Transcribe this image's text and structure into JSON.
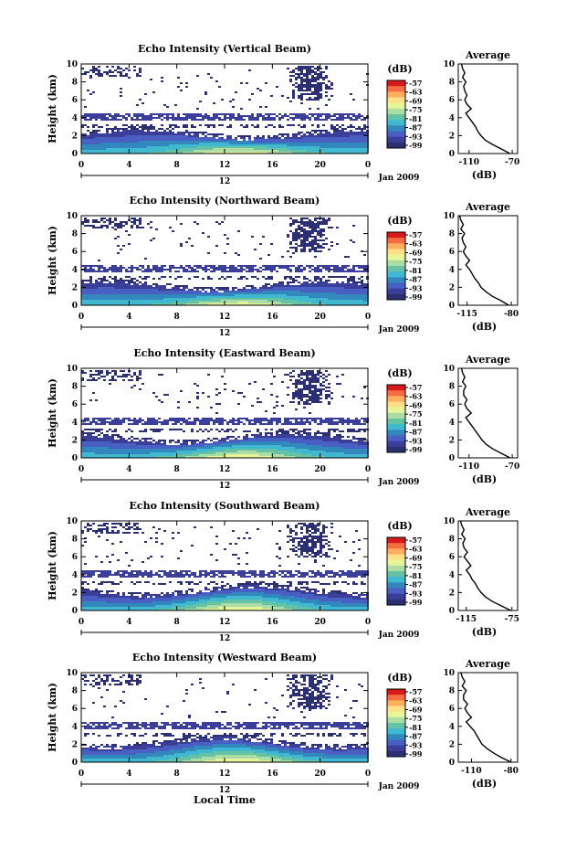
{
  "figure": {
    "xlabel": "Local Time",
    "date_label": "Jan 2009",
    "day_marker": "12"
  },
  "colorbar": {
    "title": "(dB)",
    "ticks": [
      "-57",
      "-63",
      "-69",
      "-75",
      "-81",
      "-87",
      "-93",
      "-99"
    ],
    "colors": [
      "#d7191c",
      "#f46d43",
      "#fdae61",
      "#fee08b",
      "#e6f598",
      "#abdda4",
      "#66c2a5",
      "#3fb8d0",
      "#3288bd",
      "#4a5fc2",
      "#3b3f9a",
      "#2d2f73"
    ]
  },
  "chart_data": [
    {
      "type": "heatmap",
      "title": "Echo Intensity (Vertical Beam)",
      "ylabel": "Height (km)",
      "x_ticks": [
        "0",
        "4",
        "8",
        "12",
        "16",
        "20",
        "0"
      ],
      "y_ticks": [
        "0",
        "2",
        "4",
        "6",
        "8",
        "10"
      ],
      "xlim": [
        0,
        24
      ],
      "ylim": [
        0,
        10
      ],
      "profile": {
        "title": "Average",
        "xlabel": "(dB)",
        "x_ticks": [
          "-110",
          "-70"
        ],
        "xlim": [
          -120,
          -65
        ],
        "heights": [
          0,
          0.5,
          1,
          1.5,
          2,
          2.5,
          3,
          3.5,
          4,
          4.5,
          5,
          5.5,
          6,
          6.5,
          7,
          7.5,
          8,
          8.5,
          9,
          9.5,
          10
        ],
        "values": [
          -72,
          -80,
          -88,
          -95,
          -99,
          -102,
          -104,
          -107,
          -110,
          -113,
          -108,
          -112,
          -114,
          -112,
          -114,
          -115,
          -113,
          -116,
          -114,
          -116,
          -117
        ]
      }
    },
    {
      "type": "heatmap",
      "title": "Echo Intensity (Northward Beam)",
      "ylabel": "Height (km)",
      "x_ticks": [
        "0",
        "4",
        "8",
        "12",
        "16",
        "20",
        "0"
      ],
      "y_ticks": [
        "0",
        "2",
        "4",
        "6",
        "8",
        "10"
      ],
      "xlim": [
        0,
        24
      ],
      "ylim": [
        0,
        10
      ],
      "profile": {
        "title": "Average",
        "xlabel": "(dB)",
        "x_ticks": [
          "-115",
          "-80"
        ],
        "xlim": [
          -122,
          -75
        ],
        "heights": [
          0,
          0.5,
          1,
          1.5,
          2,
          2.5,
          3,
          3.5,
          4,
          4.5,
          5,
          5.5,
          6,
          6.5,
          7,
          7.5,
          8,
          8.5,
          9,
          9.5,
          10
        ],
        "values": [
          -82,
          -88,
          -95,
          -100,
          -104,
          -106,
          -109,
          -111,
          -113,
          -116,
          -113,
          -116,
          -118,
          -116,
          -118,
          -119,
          -117,
          -120,
          -118,
          -120,
          -121
        ]
      }
    },
    {
      "type": "heatmap",
      "title": "Echo Intensity (Eastward Beam)",
      "ylabel": "Height (km)",
      "x_ticks": [
        "0",
        "4",
        "8",
        "12",
        "16",
        "20",
        "0"
      ],
      "y_ticks": [
        "0",
        "2",
        "4",
        "6",
        "8",
        "10"
      ],
      "xlim": [
        0,
        24
      ],
      "ylim": [
        0,
        10
      ],
      "profile": {
        "title": "Average",
        "xlabel": "(dB)",
        "x_ticks": [
          "-110",
          "-70"
        ],
        "xlim": [
          -120,
          -65
        ],
        "heights": [
          0,
          0.5,
          1,
          1.5,
          2,
          2.5,
          3,
          3.5,
          4,
          4.5,
          5,
          5.5,
          6,
          6.5,
          7,
          7.5,
          8,
          8.5,
          9,
          9.5,
          10
        ],
        "values": [
          -72,
          -80,
          -88,
          -94,
          -98,
          -101,
          -104,
          -107,
          -110,
          -113,
          -108,
          -112,
          -114,
          -112,
          -115,
          -115,
          -113,
          -116,
          -114,
          -116,
          -117
        ]
      }
    },
    {
      "type": "heatmap",
      "title": "Echo Intensity (Southward Beam)",
      "ylabel": "Height (km)",
      "x_ticks": [
        "0",
        "4",
        "8",
        "12",
        "16",
        "20",
        "0"
      ],
      "y_ticks": [
        "0",
        "2",
        "4",
        "6",
        "8",
        "10"
      ],
      "xlim": [
        0,
        24
      ],
      "ylim": [
        0,
        10
      ],
      "profile": {
        "title": "Average",
        "xlabel": "(dB)",
        "x_ticks": [
          "-115",
          "-75"
        ],
        "xlim": [
          -122,
          -70
        ],
        "heights": [
          0,
          0.5,
          1,
          1.5,
          2,
          2.5,
          3,
          3.5,
          4,
          4.5,
          5,
          5.5,
          6,
          6.5,
          7,
          7.5,
          8,
          8.5,
          9,
          9.5,
          10
        ],
        "values": [
          -76,
          -84,
          -92,
          -98,
          -102,
          -105,
          -107,
          -110,
          -112,
          -115,
          -111,
          -114,
          -117,
          -114,
          -117,
          -118,
          -116,
          -119,
          -117,
          -119,
          -120
        ]
      }
    },
    {
      "type": "heatmap",
      "title": "Echo Intensity (Westward Beam)",
      "ylabel": "Height (km)",
      "x_ticks": [
        "0",
        "4",
        "8",
        "12",
        "16",
        "20",
        "0"
      ],
      "y_ticks": [
        "0",
        "2",
        "4",
        "6",
        "8",
        "10"
      ],
      "xlim": [
        0,
        24
      ],
      "ylim": [
        0,
        10
      ],
      "profile": {
        "title": "Average",
        "xlabel": "(dB)",
        "x_ticks": [
          "-110",
          "-80"
        ],
        "xlim": [
          -120,
          -75
        ],
        "heights": [
          0,
          0.5,
          1,
          1.5,
          2,
          2.5,
          3,
          3.5,
          4,
          4.5,
          5,
          5.5,
          6,
          6.5,
          7,
          7.5,
          8,
          8.5,
          9,
          9.5,
          10
        ],
        "values": [
          -80,
          -87,
          -93,
          -98,
          -102,
          -104,
          -106,
          -108,
          -111,
          -114,
          -110,
          -113,
          -115,
          -113,
          -116,
          -116,
          -114,
          -117,
          -115,
          -117,
          -118
        ]
      }
    }
  ]
}
